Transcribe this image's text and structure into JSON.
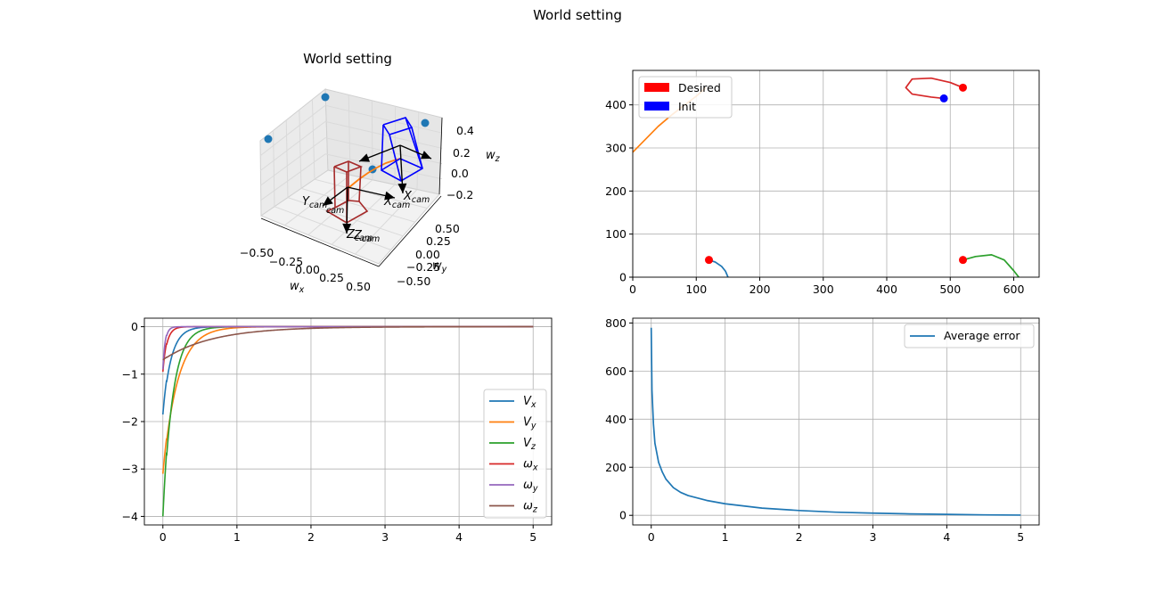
{
  "figure_title": "World setting",
  "colors": {
    "c0": "#1f77b4",
    "c1": "#ff7f0e",
    "c2": "#2ca02c",
    "c3": "#d62728",
    "c4": "#9467bd",
    "c5": "#8c564b",
    "grid": "#b0b0b0",
    "desired": "#ff0000",
    "init": "#0000ff",
    "cam_desired": "#a52a2a",
    "cam_init": "#0000ff"
  },
  "chart_data": [
    {
      "type": "scatter3d",
      "title": "World setting",
      "xlabel": "w_x",
      "ylabel": "w_y",
      "zlabel": "w_z",
      "xticks": [
        "−0.50",
        "−0.25",
        "0.00",
        "0.25",
        "0.50"
      ],
      "yticks": [
        "−0.50",
        "−0.25",
        "0.00",
        "0.25",
        "0.50"
      ],
      "zticks": [
        "−0.2",
        "0.0",
        "0.2",
        "0.4"
      ],
      "camera_labels": [
        "Y_cam",
        "X_cam",
        "Z_cam",
        "X_cam",
        "Z_cam"
      ],
      "points": "4 blue world points",
      "trajectory": "orange camera path from desired to initial pose"
    },
    {
      "type": "line",
      "title": "",
      "xlim": [
        0,
        640
      ],
      "ylim": [
        0,
        480
      ],
      "xticks": [
        0,
        100,
        200,
        300,
        400,
        500,
        600
      ],
      "yticks": [
        0,
        100,
        200,
        300,
        400
      ],
      "legend": [
        {
          "name": "Desired",
          "color": "#ff0000"
        },
        {
          "name": "Init",
          "color": "#0000ff"
        }
      ],
      "legend_loc": "upper left",
      "grid": true,
      "series": [
        {
          "color": "#1f77b4",
          "x": [
            120,
            130,
            140,
            146,
            150
          ],
          "y": [
            40,
            35,
            25,
            14,
            0
          ]
        },
        {
          "color": "#ff7f0e",
          "x": [
            0,
            20,
            40,
            60,
            80,
            100,
            115
          ],
          "y": [
            290,
            320,
            350,
            375,
            398,
            420,
            440
          ]
        },
        {
          "color": "#2ca02c",
          "x": [
            520,
            540,
            565,
            585,
            600,
            608
          ],
          "y": [
            40,
            48,
            52,
            40,
            15,
            0
          ]
        },
        {
          "color": "#d62728",
          "x": [
            520,
            500,
            470,
            440,
            430,
            440,
            470,
            490
          ],
          "y": [
            440,
            452,
            462,
            460,
            440,
            425,
            418,
            415
          ]
        }
      ],
      "desired_points": [
        [
          120,
          40
        ],
        [
          520,
          440
        ],
        [
          520,
          40
        ]
      ],
      "init_points": [
        [
          490,
          415
        ]
      ]
    },
    {
      "type": "line",
      "title": "",
      "xlim": [
        -0.25,
        5.25
      ],
      "ylim": [
        -4.18,
        0.18
      ],
      "xticks": [
        0,
        1,
        2,
        3,
        4,
        5
      ],
      "yticks": [
        0,
        -1,
        -2,
        -3,
        -4
      ],
      "legend_loc": "lower right",
      "grid": true,
      "series": [
        {
          "name": "V_x",
          "color": "#1f77b4",
          "start": -1.85,
          "tau": 0.1
        },
        {
          "name": "V_y",
          "color": "#ff7f0e",
          "start": -3.1,
          "tau": 0.18
        },
        {
          "name": "V_z",
          "color": "#2ca02c",
          "start": -4.0,
          "tau": 0.12
        },
        {
          "name": "ω_x",
          "color": "#d62728",
          "start": -0.95,
          "tau": 0.05
        },
        {
          "name": "ω_y",
          "color": "#9467bd",
          "start": -0.9,
          "tau": 0.03
        },
        {
          "name": "ω_z",
          "color": "#8c564b",
          "start": -0.7,
          "tau": 0.6
        }
      ]
    },
    {
      "type": "line",
      "title": "",
      "xlim": [
        -0.25,
        5.25
      ],
      "ylim": [
        -40,
        820
      ],
      "xticks": [
        0,
        1,
        2,
        3,
        4,
        5
      ],
      "yticks": [
        0,
        200,
        400,
        600,
        800
      ],
      "legend_loc": "upper right",
      "grid": true,
      "series": [
        {
          "name": "Average error",
          "color": "#1f77b4",
          "x": [
            0,
            0.01,
            0.03,
            0.05,
            0.1,
            0.15,
            0.2,
            0.3,
            0.4,
            0.5,
            0.75,
            1,
            1.5,
            2,
            2.5,
            3,
            3.5,
            4,
            4.5,
            5
          ],
          "y": [
            780,
            520,
            380,
            300,
            220,
            180,
            150,
            115,
            95,
            82,
            62,
            48,
            30,
            20,
            13,
            9,
            6,
            4,
            2,
            1
          ]
        }
      ]
    }
  ]
}
